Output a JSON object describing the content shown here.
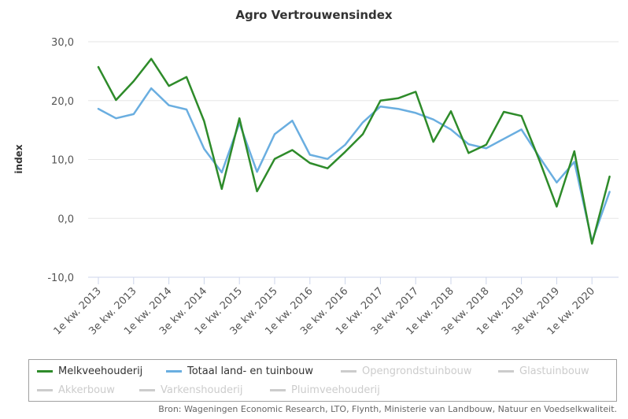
{
  "chart_data": {
    "type": "line",
    "title": "Agro Vertrouwensindex",
    "xlabel": "",
    "ylabel": "index",
    "ylim": [
      -10,
      30
    ],
    "y_ticks": [
      "-10,0",
      "0,0",
      "10,0",
      "20,0",
      "30,0"
    ],
    "y_tick_values": [
      -10,
      0,
      10,
      20,
      30
    ],
    "x_tick_labels": [
      "1e kw. 2013",
      "3e kw. 2013",
      "1e kw. 2014",
      "3e kw. 2014",
      "1e kw. 2015",
      "3e kw. 2015",
      "1e kw. 2016",
      "3e kw. 2016",
      "1e kw. 2017",
      "3e kw. 2017",
      "1e kw. 2018",
      "3e kw. 2018",
      "1e kw. 2019",
      "3e kw. 2019",
      "1e kw. 2020"
    ],
    "x_tick_indices": [
      0,
      2,
      4,
      6,
      8,
      10,
      12,
      14,
      16,
      18,
      20,
      22,
      24,
      26,
      28
    ],
    "n_points": 30,
    "grid": true,
    "legend_position": "bottom",
    "series": [
      {
        "name": "Melkveehouderij",
        "color": "#2e8b2a",
        "visible": true,
        "values": [
          25.7,
          20.1,
          23.3,
          27.1,
          22.5,
          24.0,
          16.5,
          5.0,
          17.0,
          4.6,
          10.1,
          11.6,
          9.4,
          8.5,
          11.3,
          14.3,
          20.0,
          20.4,
          21.5,
          13.0,
          18.2,
          11.1,
          12.5,
          18.1,
          17.4,
          10.0,
          2.0,
          11.4,
          -4.3,
          7.1
        ]
      },
      {
        "name": "Totaal land- en tuinbouw",
        "color": "#6aaee0",
        "visible": true,
        "values": [
          18.6,
          17.0,
          17.7,
          22.1,
          19.2,
          18.5,
          11.8,
          7.8,
          16.2,
          7.9,
          14.3,
          16.6,
          10.8,
          10.1,
          12.5,
          16.3,
          19.0,
          18.6,
          17.9,
          16.8,
          15.1,
          12.6,
          11.9,
          13.5,
          15.1,
          10.5,
          6.1,
          9.6,
          -3.9,
          4.5
        ]
      }
    ],
    "legend": [
      {
        "label": "Melkveehouderij",
        "color": "#2e8b2a",
        "visible": true
      },
      {
        "label": "Totaal land- en tuinbouw",
        "color": "#6aaee0",
        "visible": true
      },
      {
        "label": "Opengrondstuinbouw",
        "color": "#cccccc",
        "visible": false
      },
      {
        "label": "Glastuinbouw",
        "color": "#cccccc",
        "visible": false
      },
      {
        "label": "Akkerbouw",
        "color": "#cccccc",
        "visible": false
      },
      {
        "label": "Varkenshouderij",
        "color": "#cccccc",
        "visible": false
      },
      {
        "label": "Pluimveehouderij",
        "color": "#cccccc",
        "visible": false
      }
    ],
    "source": "Bron: Wageningen Economic Research, LTO, Flynth, Ministerie van Landbouw, Natuur en Voedselkwaliteit."
  }
}
